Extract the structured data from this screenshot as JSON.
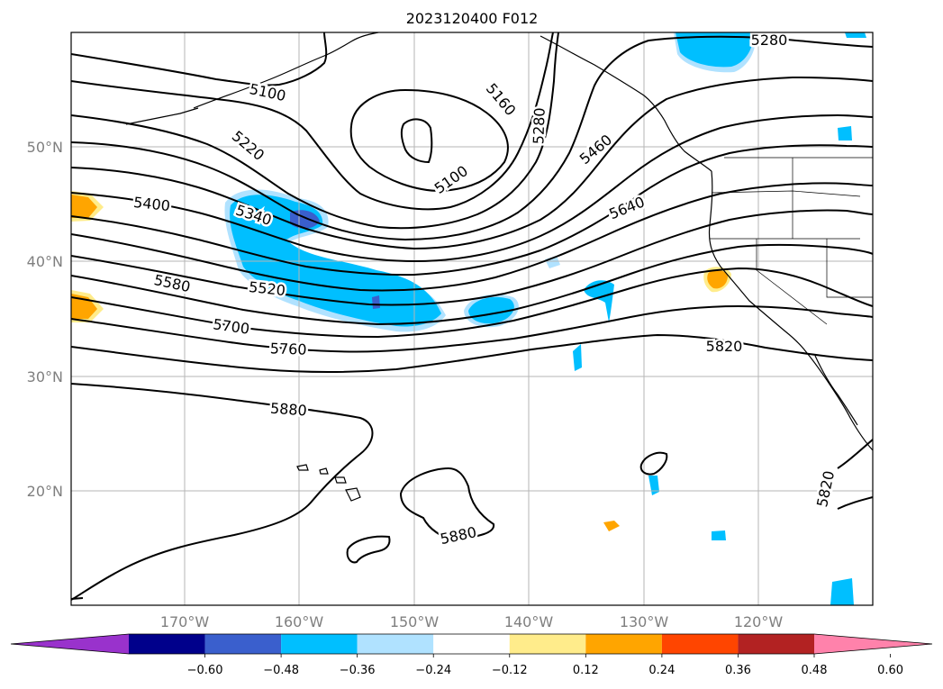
{
  "title": "2023120400 F012",
  "lat_labels": [
    "50°N",
    "40°N",
    "30°N",
    "20°N"
  ],
  "lon_labels": [
    "170°W",
    "160°W",
    "150°W",
    "140°W",
    "130°W",
    "120°W"
  ],
  "colorbar": {
    "ticks": [
      "−0.60",
      "−0.48",
      "−0.36",
      "−0.24",
      "−0.12",
      "0.12",
      "0.24",
      "0.36",
      "0.48",
      "0.60"
    ],
    "colors": [
      "#9932cc",
      "#00008b",
      "#3a5fcd",
      "#00bfff",
      "#b0e2ff",
      "#ffffff",
      "#ffec8b",
      "#ffa500",
      "#ff4500",
      "#b22222",
      "#ff82ab"
    ]
  },
  "contour_labels": {
    "l5100_nw": "5100",
    "l5160": "5160",
    "l5220": "5220",
    "l5280_top": "5280",
    "l5280": "5280",
    "l5100_low": "5100",
    "l5460": "5460",
    "l5400": "5400",
    "l5340": "5340",
    "l5640": "5640",
    "l5580": "5580",
    "l5520": "5520",
    "l5700": "5700",
    "l5760": "5760",
    "l5820_e": "5820",
    "l5880_w": "5880",
    "l5880_s": "5880",
    "l5820_se": "5820"
  }
}
